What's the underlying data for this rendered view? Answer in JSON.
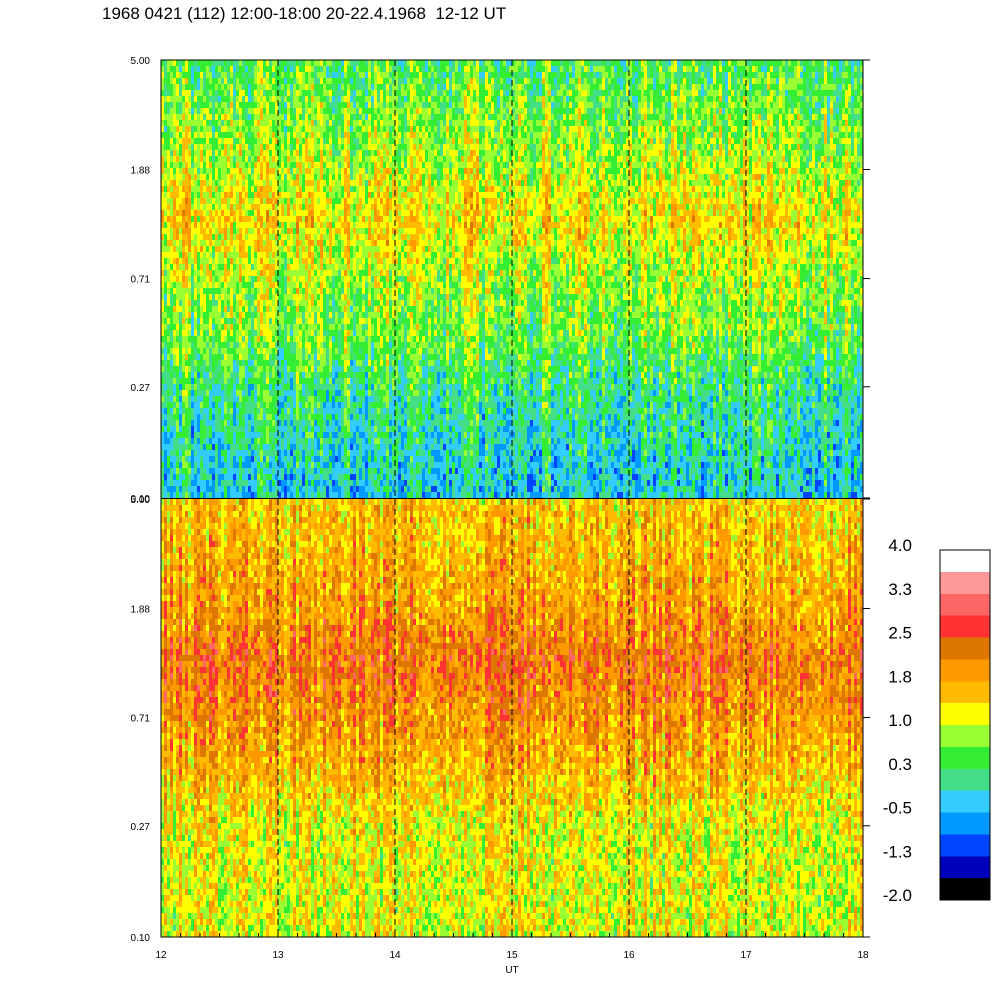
{
  "title": "1968 0421 (112) 12:00-18:00 20-22.4.1968  12-12 UT",
  "chart_data": [
    {
      "type": "heatmap",
      "panel": "top",
      "y_scale": "log",
      "ylim": [
        0.1,
        5.0
      ],
      "y_ticks": [
        "5.00",
        "1.88",
        "0.71",
        "0.27",
        "0.10"
      ],
      "xlim": [
        12,
        18
      ],
      "vertical_markers_x": [
        13,
        14,
        15,
        16,
        17
      ],
      "grid": false,
      "approx_level_profile": [
        {
          "y": 5.0,
          "level": 0.4
        },
        {
          "y": 1.88,
          "level": 1.0
        },
        {
          "y": 1.2,
          "level": 1.4
        },
        {
          "y": 0.71,
          "level": 0.9
        },
        {
          "y": 0.4,
          "level": 0.6
        },
        {
          "y": 0.27,
          "level": 0.2
        },
        {
          "y": 0.1,
          "level": -0.3
        }
      ]
    },
    {
      "type": "heatmap",
      "panel": "bottom",
      "y_scale": "log",
      "ylim": [
        0.1,
        5.0
      ],
      "y_ticks": [
        "5.00",
        "1.88",
        "0.71",
        "0.27",
        "0.10"
      ],
      "xlim": [
        12,
        18
      ],
      "x_ticks": [
        "12",
        "13",
        "14",
        "15",
        "16",
        "17",
        "18"
      ],
      "xlabel": "UT",
      "vertical_markers_x": [
        13,
        14,
        15,
        16,
        17
      ],
      "grid": false,
      "approx_level_profile": [
        {
          "y": 5.0,
          "level": 1.5
        },
        {
          "y": 1.88,
          "level": 1.9
        },
        {
          "y": 1.2,
          "level": 2.3
        },
        {
          "y": 0.71,
          "level": 2.0
        },
        {
          "y": 0.4,
          "level": 1.6
        },
        {
          "y": 0.27,
          "level": 1.2
        },
        {
          "y": 0.1,
          "level": 1.1
        }
      ]
    }
  ],
  "colorbar": {
    "range": [
      -2.0,
      4.0
    ],
    "labels": [
      "4.0",
      "3.3",
      "2.5",
      "1.8",
      "1.0",
      "0.3",
      "-0.5",
      "-1.3",
      "-2.0"
    ],
    "colors_top_to_bottom": [
      "#ffffff",
      "#ff9999",
      "#ff6666",
      "#ff3333",
      "#dd7700",
      "#ff9900",
      "#ffbb00",
      "#ffff00",
      "#99ff33",
      "#33ee33",
      "#44dd88",
      "#33ccff",
      "#0099ff",
      "#0044ff",
      "#0000bb",
      "#000000"
    ]
  }
}
